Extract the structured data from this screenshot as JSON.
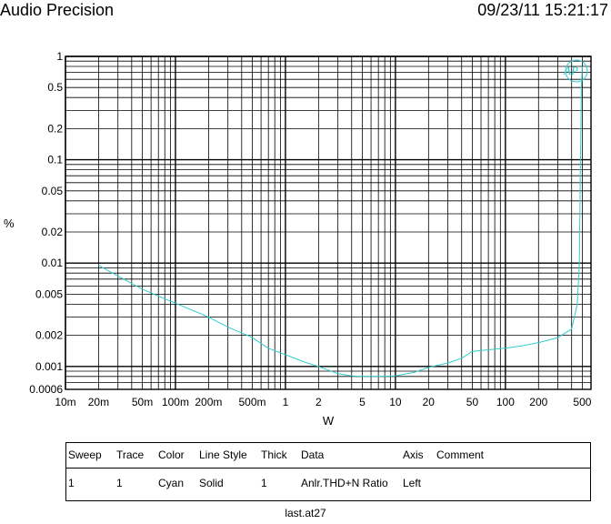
{
  "header": {
    "title": "Audio Precision",
    "datetime": "09/23/11 15:21:17"
  },
  "chart_data": {
    "type": "line",
    "title": "",
    "xlabel": "W",
    "ylabel": "%",
    "x_scale": "log",
    "y_scale": "log",
    "xlim": [
      0.01,
      600
    ],
    "ylim": [
      0.0006,
      1
    ],
    "x_ticks": [
      {
        "value": 0.01,
        "label": "10m"
      },
      {
        "value": 0.02,
        "label": "20m"
      },
      {
        "value": 0.05,
        "label": "50m"
      },
      {
        "value": 0.1,
        "label": "100m"
      },
      {
        "value": 0.2,
        "label": "200m"
      },
      {
        "value": 0.5,
        "label": "500m"
      },
      {
        "value": 1,
        "label": "1"
      },
      {
        "value": 2,
        "label": "2"
      },
      {
        "value": 5,
        "label": "5"
      },
      {
        "value": 10,
        "label": "10"
      },
      {
        "value": 20,
        "label": "20"
      },
      {
        "value": 50,
        "label": "50"
      },
      {
        "value": 100,
        "label": "100"
      },
      {
        "value": 200,
        "label": "200"
      },
      {
        "value": 500,
        "label": "500"
      }
    ],
    "y_ticks": [
      {
        "value": 1,
        "label": "1"
      },
      {
        "value": 0.5,
        "label": "0.5"
      },
      {
        "value": 0.2,
        "label": "0.2"
      },
      {
        "value": 0.1,
        "label": "0.1"
      },
      {
        "value": 0.05,
        "label": "0.05"
      },
      {
        "value": 0.02,
        "label": "0.02"
      },
      {
        "value": 0.01,
        "label": "0.01"
      },
      {
        "value": 0.005,
        "label": "0.005"
      },
      {
        "value": 0.002,
        "label": "0.002"
      },
      {
        "value": 0.001,
        "label": "0.001"
      },
      {
        "value": 0.0006,
        "label": "0.0006"
      }
    ],
    "grid": true,
    "series": [
      {
        "name": "Anlr.THD+N Ratio",
        "color": "#33cccc",
        "x": [
          0.02,
          0.03,
          0.05,
          0.08,
          0.1,
          0.2,
          0.3,
          0.5,
          0.7,
          1,
          1.5,
          2,
          3,
          4,
          5,
          7,
          10,
          15,
          20,
          30,
          40,
          50,
          70,
          100,
          150,
          200,
          300,
          400,
          450,
          470,
          480,
          490,
          500
        ],
        "y": [
          0.0095,
          0.0075,
          0.0056,
          0.0045,
          0.0041,
          0.003,
          0.0024,
          0.0019,
          0.0015,
          0.0013,
          0.0011,
          0.001,
          0.00085,
          0.00081,
          0.0008,
          0.0008,
          0.00081,
          0.00088,
          0.00098,
          0.00108,
          0.0012,
          0.0014,
          0.00145,
          0.0015,
          0.0016,
          0.0017,
          0.0019,
          0.0023,
          0.004,
          0.01,
          0.08,
          0.5,
          0.8
        ]
      }
    ]
  },
  "legend_table": {
    "headers": [
      "Sweep",
      "Trace",
      "Color",
      "Line Style",
      "Thick",
      "Data",
      "Axis",
      "Comment"
    ],
    "row": [
      "1",
      "1",
      "Cyan",
      "Solid",
      "1",
      "Anlr.THD+N Ratio",
      "Left",
      ""
    ]
  },
  "footer": {
    "filename": "last.at27"
  }
}
